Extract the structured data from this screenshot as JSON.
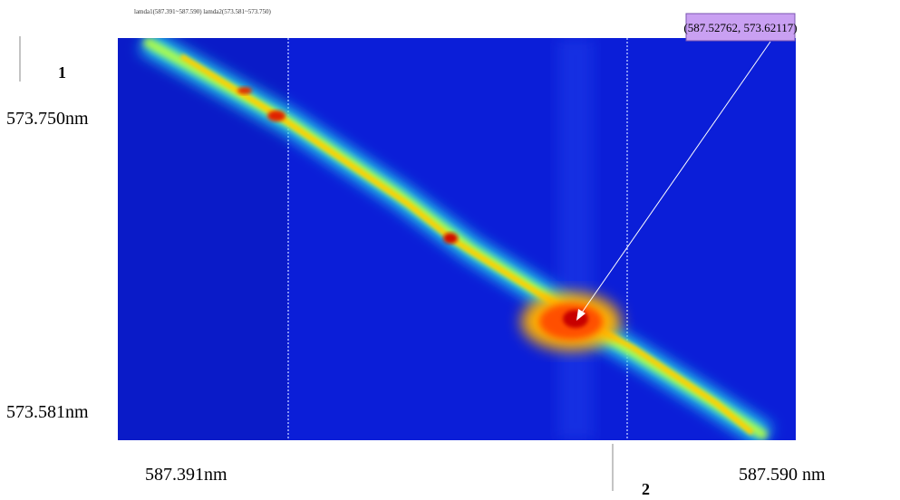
{
  "header": {
    "caption": "lamda1(587.391~587.590) lamda2(573.581~573.750)"
  },
  "labels": {
    "marker_1": "1",
    "y_top": "573.750nm",
    "y_bottom": "573.581nm",
    "x_left": "587.391nm",
    "x_right": "587.590 nm",
    "marker_2": "2"
  },
  "annotation": {
    "text": "(587.52762, 573.62117)"
  }
}
